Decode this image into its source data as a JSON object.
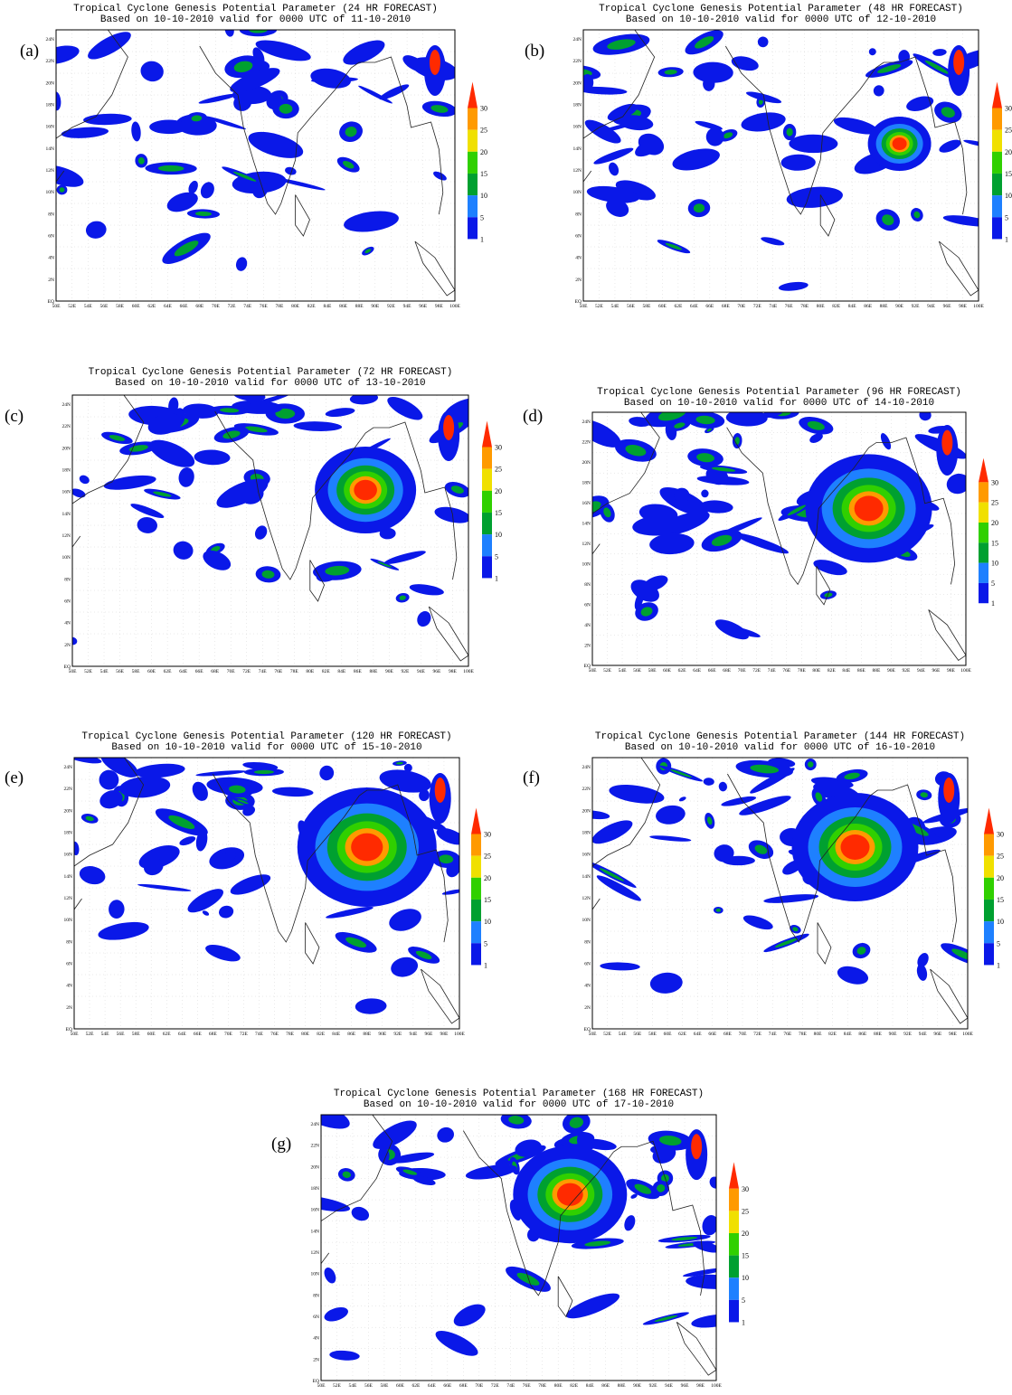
{
  "figure": {
    "colorbar_labels": [
      "30",
      "25",
      "20",
      "15",
      "10",
      "5",
      "1"
    ],
    "lat_labels": [
      "24N",
      "22N",
      "20N",
      "18N",
      "16N",
      "14N",
      "12N",
      "10N",
      "8N",
      "6N",
      "4N",
      "2N",
      "EQ"
    ],
    "lon_labels": [
      "50E",
      "52E",
      "54E",
      "56E",
      "58E",
      "60E",
      "62E",
      "64E",
      "66E",
      "68E",
      "70E",
      "72E",
      "74E",
      "76E",
      "78E",
      "80E",
      "82E",
      "84E",
      "86E",
      "88E",
      "90E",
      "92E",
      "94E",
      "96E",
      "98E",
      "100E"
    ]
  },
  "panels": [
    {
      "label": "(a)",
      "title": "Tropical Cyclone Genesis Potential Parameter (24 HR FORECAST)",
      "subtitle": "Based on 10-10-2010 valid for 0000 UTC of 11-10-2010"
    },
    {
      "label": "(b)",
      "title": "Tropical Cyclone Genesis Potential Parameter (48 HR FORECAST)",
      "subtitle": "Based on 10-10-2010 valid for 0000 UTC of 12-10-2010"
    },
    {
      "label": "(c)",
      "title": "Tropical Cyclone Genesis Potential Parameter (72 HR FORECAST)",
      "subtitle": "Based on 10-10-2010 valid for 0000 UTC of 13-10-2010"
    },
    {
      "label": "(d)",
      "title": "Tropical Cyclone Genesis Potential Parameter (96 HR FORECAST)",
      "subtitle": "Based on 10-10-2010 valid for 0000 UTC of 14-10-2010"
    },
    {
      "label": "(e)",
      "title": "Tropical Cyclone Genesis Potential Parameter (120 HR FORECAST)",
      "subtitle": "Based on 10-10-2010 valid for 0000 UTC of 15-10-2010"
    },
    {
      "label": "(f)",
      "title": "Tropical Cyclone Genesis Potential Parameter (144 HR FORECAST)",
      "subtitle": "Based on 10-10-2010 valid for 0000 UTC of 16-10-2010"
    },
    {
      "label": "(g)",
      "title": "Tropical Cyclone Genesis Potential Parameter (168 HR FORECAST)",
      "subtitle": "Based on 10-10-2010 valid for 0000 UTC of 17-10-2010"
    }
  ]
}
